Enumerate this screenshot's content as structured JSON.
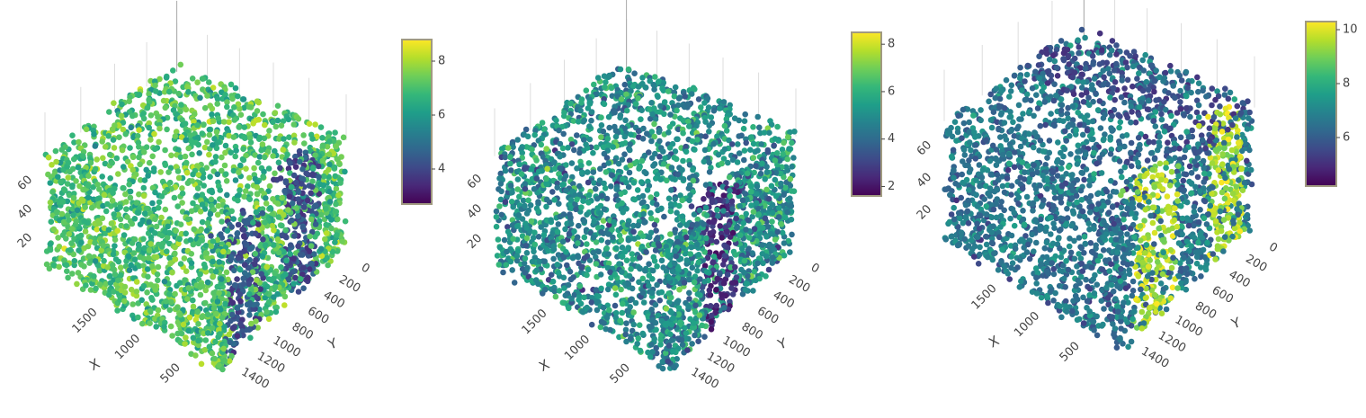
{
  "chart_data": [
    {
      "type": "scatter3d",
      "title": "",
      "xlabel": "X",
      "ylabel": "Y",
      "zlabel": "",
      "xlim": [
        150,
        2200
      ],
      "ylim": [
        -100,
        1500
      ],
      "zlim": [
        0,
        80
      ],
      "x_ticks": [
        500,
        1000,
        1500
      ],
      "y_ticks": [
        0,
        200,
        400,
        600,
        800,
        1000,
        1200,
        1400
      ],
      "z_ticks": [
        20,
        40,
        60
      ],
      "colorscale": "viridis",
      "colorbar": {
        "range": [
          2.7,
          8.8
        ],
        "ticks": [
          4,
          6,
          8
        ]
      },
      "value_pattern": {
        "base": 7.0,
        "noise": 0.9,
        "front_face_dark_bands": [
          [
            0.08,
            0.35
          ],
          [
            0.55,
            0.8
          ]
        ],
        "band_value": 4.2
      }
    },
    {
      "type": "scatter3d",
      "title": "",
      "xlabel": "X",
      "ylabel": "Y",
      "zlabel": "",
      "xlim": [
        150,
        2200
      ],
      "ylim": [
        -100,
        1500
      ],
      "zlim": [
        0,
        80
      ],
      "x_ticks": [
        500,
        1000,
        1500
      ],
      "y_ticks": [
        0,
        200,
        400,
        600,
        800,
        1000,
        1200,
        1400
      ],
      "z_ticks": [
        20,
        40,
        60
      ],
      "colorscale": "viridis",
      "colorbar": {
        "range": [
          1.6,
          8.5
        ],
        "ticks": [
          2,
          4,
          6,
          8
        ]
      },
      "value_pattern": {
        "base": 5.0,
        "noise": 1.4,
        "front_face_dark_bands": [
          [
            0.3,
            0.55
          ]
        ],
        "band_value": 2.5
      }
    },
    {
      "type": "scatter3d",
      "title": "",
      "xlabel": "X",
      "ylabel": "Y",
      "zlabel": "",
      "xlim": [
        150,
        2200
      ],
      "ylim": [
        -100,
        1500
      ],
      "zlim": [
        0,
        80
      ],
      "x_ticks": [
        500,
        1000,
        1500
      ],
      "y_ticks": [
        0,
        200,
        400,
        600,
        800,
        1000,
        1200,
        1400
      ],
      "z_ticks": [
        20,
        40,
        60
      ],
      "colorscale": "viridis",
      "colorbar": {
        "range": [
          4.2,
          10.3
        ],
        "ticks": [
          6,
          8,
          10
        ]
      },
      "value_pattern": {
        "base": 6.6,
        "noise": 0.9,
        "front_face_dark_bands": [
          [
            0.15,
            0.45
          ],
          [
            0.7,
            0.95
          ]
        ],
        "band_value": 9.6
      }
    }
  ]
}
